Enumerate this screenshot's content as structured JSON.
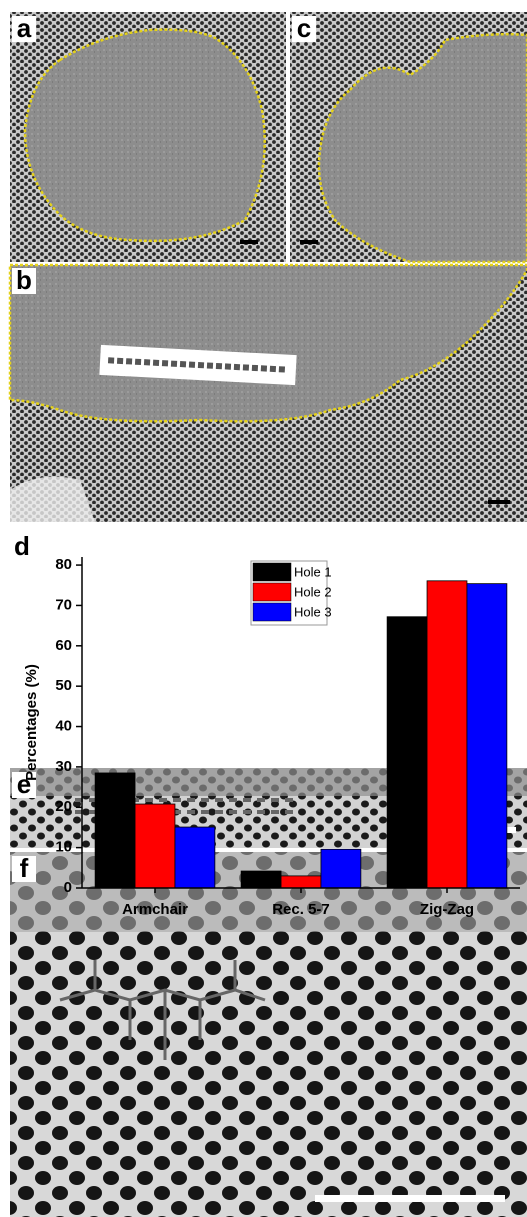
{
  "panel_labels": [
    "a",
    "c",
    "b",
    "d",
    "e",
    "f"
  ],
  "chart_data": {
    "type": "bar",
    "ylabel": "Percentages (%)",
    "categories": [
      "Armchair",
      "Rec. 5-7",
      "Zig-Zag"
    ],
    "series": [
      {
        "name": "Hole 1",
        "color": "#000000",
        "values": [
          28.5,
          4.2,
          67.2
        ]
      },
      {
        "name": "Hole 2",
        "color": "#ff0000",
        "values": [
          20.8,
          3.0,
          76.1
        ]
      },
      {
        "name": "Hole 3",
        "color": "#0000ff",
        "values": [
          15.1,
          9.6,
          75.4
        ]
      }
    ],
    "ylim": [
      0,
      82
    ],
    "yticks": [
      0,
      10,
      20,
      30,
      40,
      50,
      60,
      70,
      80
    ],
    "legend": "upper center",
    "grid": false
  }
}
